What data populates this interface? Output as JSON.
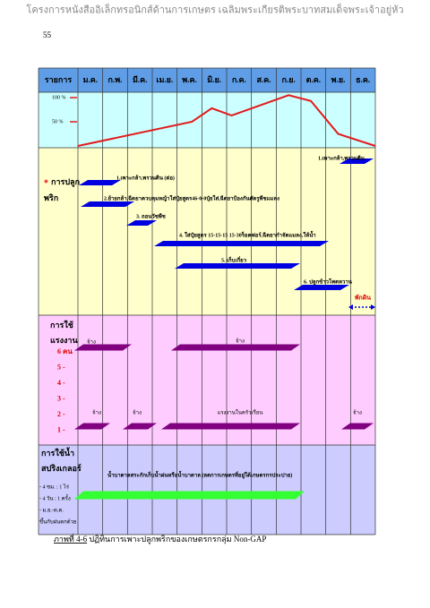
{
  "header": "โครงการหนังสืออิเล็กทรอนิกส์ด้านการเกษตร เฉลิมพระเกียรติพระบาทสมเด็จพระเจ้าอยู่หัว",
  "page_number": "55",
  "table": {
    "corner": "รายการ",
    "months": [
      "ม.ค.",
      "ก.พ.",
      "มี.ค.",
      "เม.ย.",
      "พ.ค.",
      "มิ.ย.",
      "ก.ค.",
      "ส.ค.",
      "ก.ย.",
      "ต.ค.",
      "พ.ย.",
      "ธ.ค."
    ],
    "growth_chart": {
      "type": "line",
      "color": "#e31a1c",
      "x": [
        0,
        4.6,
        5.4,
        6.2,
        8.5,
        9.4,
        10.5,
        12
      ],
      "values": [
        0,
        50,
        78,
        63,
        105,
        93,
        25,
        0
      ],
      "ylim": [
        0,
        100
      ],
      "yticks": [
        {
          "value": 100,
          "label": "100 %"
        },
        {
          "value": 50,
          "label": "50 %"
        }
      ]
    },
    "planting": {
      "marker": "*",
      "title": "การปลูก",
      "crop": "พริก",
      "activities": [
        {
          "label": "1.เพาะกล้า,พรวนดิน (ต่อ)"
        },
        {
          "label": "2.ย้ายกล้า,ฉีดยาควบคุมหญ้าใส่ปุ๋ยสูตร46-0-0ปุ๋ยใส่,ฉีดยาป้องกันศัตรูพืชแมลง"
        },
        {
          "label": "3. ถอนวัชพืช"
        },
        {
          "label": "4. ใส่ปุ๋ยสูตร 15-15-15  15-30ร็อคฟอร์,ฉีดยากำจัดแมลง,ให้น้ำ"
        },
        {
          "label": "5. เก็บเกี่ยว"
        },
        {
          "label": "6. ปลูกข้าวโพดหวาน"
        },
        {
          "label": "1.เพาะกล้า,พรวนดิน"
        }
      ],
      "fallow": "พักดิน"
    },
    "labor": {
      "title": [
        "การใช้",
        "แรงงาน"
      ],
      "levels": [
        "6 คน",
        "5  -",
        "4  -",
        "3  -",
        "2  -",
        "1  -"
      ],
      "bars": [
        {
          "label": "จ้าง"
        },
        {
          "label": "จ้าง"
        },
        {
          "label": "จ้าง"
        },
        {
          "label": "จ้าง"
        },
        {
          "label": "แรงงานในครัวเรือน"
        },
        {
          "label": "จ้าง"
        }
      ]
    },
    "water": {
      "title": [
        "การใช้น้ำ",
        "สปริงเกลอร์"
      ],
      "notes": [
        "- 4 ชม. : 1 ไร่",
        "- 4 วัน : 1 ครั้ง",
        "- ม.ย.-ต.ค.",
        "ขึ้นกับฝนตกด้วย"
      ],
      "bar_label": "น้ำบาดาลสระกักเก็บน้ำฝนหรือน้ำบาดาล (ลดการเกษตรที่อยู่ใต้เกษตรกรประปาย)"
    }
  },
  "caption": {
    "number": "ภาพที่ 4-6",
    "text": " ปฏิทินการเพาะปลูกพริกของเกษตรกรกลุ่ม Non-GAP"
  }
}
